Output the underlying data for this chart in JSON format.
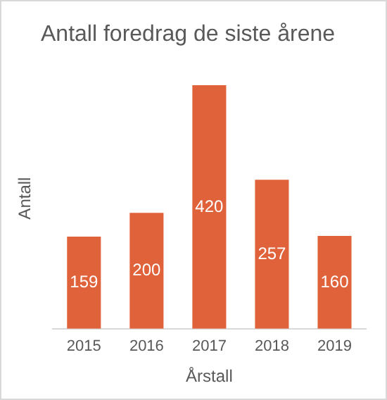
{
  "chart_data": {
    "type": "bar",
    "title": "Antall foredrag de siste årene",
    "xlabel": "Årstall",
    "ylabel": "Antall",
    "categories": [
      "2015",
      "2016",
      "2017",
      "2018",
      "2019"
    ],
    "values": [
      159,
      200,
      420,
      257,
      160
    ],
    "color": "#e0623a",
    "data_labels": true,
    "grid": false,
    "legend": false
  }
}
